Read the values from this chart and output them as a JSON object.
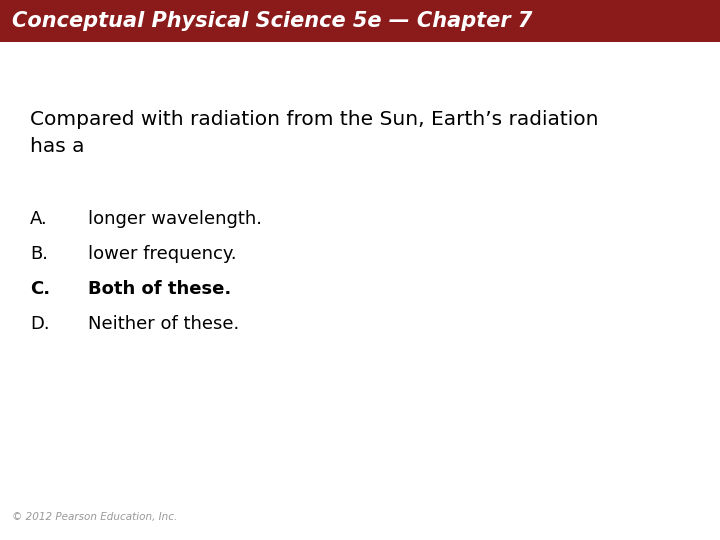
{
  "header_text": "Conceptual Physical Science 5e — Chapter 7",
  "header_bg_color": "#8B1A1A",
  "header_text_color": "#FFFFFF",
  "header_font_size": 15,
  "bg_color": "#FFFFFF",
  "question_text": "Compared with radiation from the Sun, Earth’s radiation\nhas a",
  "question_font_size": 14.5,
  "question_color": "#000000",
  "options": [
    {
      "label": "A.",
      "text": "longer wavelength.",
      "bold": false
    },
    {
      "label": "B.",
      "text": "lower frequency.",
      "bold": false
    },
    {
      "label": "C.",
      "text": "Both of these.",
      "bold": true
    },
    {
      "label": "D.",
      "text": "Neither of these.",
      "bold": false
    }
  ],
  "option_font_size": 13,
  "option_color": "#000000",
  "footer_text": "© 2012 Pearson Education, Inc.",
  "footer_font_size": 7.5,
  "footer_color": "#999999"
}
